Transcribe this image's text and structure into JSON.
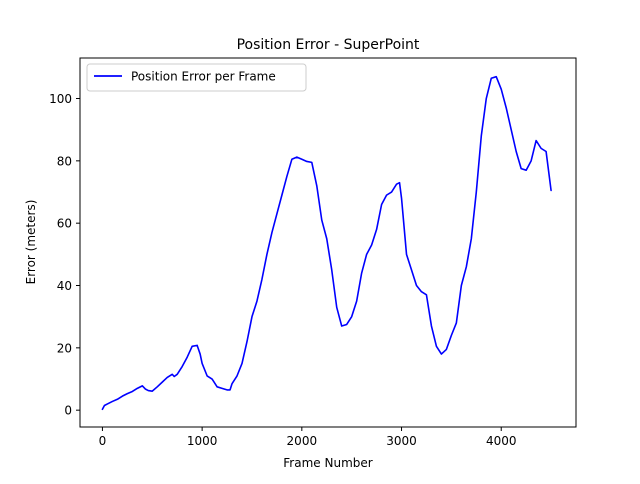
{
  "chart_data": {
    "type": "line",
    "title": "Position Error - SuperPoint",
    "xlabel": "Frame Number",
    "ylabel": "Error (meters)",
    "xlim": [
      -225,
      4750
    ],
    "ylim": [
      -5.4,
      113
    ],
    "xticks": [
      0,
      1000,
      2000,
      3000,
      4000
    ],
    "yticks": [
      0,
      20,
      40,
      60,
      80,
      100
    ],
    "grid": false,
    "legend_position": "upper-left",
    "series": [
      {
        "name": "Position Error per Frame",
        "color": "#0000ff",
        "x": [
          0,
          20,
          50,
          100,
          150,
          200,
          250,
          300,
          350,
          400,
          430,
          460,
          500,
          550,
          600,
          650,
          700,
          720,
          750,
          800,
          850,
          900,
          950,
          980,
          1000,
          1050,
          1100,
          1150,
          1200,
          1250,
          1280,
          1300,
          1350,
          1400,
          1450,
          1500,
          1550,
          1600,
          1650,
          1700,
          1750,
          1800,
          1850,
          1900,
          1950,
          2000,
          2050,
          2100,
          2150,
          2200,
          2250,
          2300,
          2350,
          2400,
          2450,
          2500,
          2550,
          2600,
          2650,
          2700,
          2750,
          2800,
          2850,
          2900,
          2950,
          2980,
          3000,
          3050,
          3100,
          3150,
          3200,
          3250,
          3300,
          3350,
          3400,
          3450,
          3500,
          3550,
          3600,
          3650,
          3700,
          3750,
          3800,
          3850,
          3900,
          3950,
          4000,
          4050,
          4100,
          4150,
          4200,
          4250,
          4300,
          4350,
          4400,
          4450,
          4500
        ],
        "values": [
          0.3,
          1.5,
          2.0,
          2.8,
          3.5,
          4.5,
          5.3,
          6.0,
          7.0,
          7.8,
          6.8,
          6.3,
          6.1,
          7.5,
          9.0,
          10.5,
          11.5,
          10.8,
          11.5,
          14.0,
          17.0,
          20.5,
          20.8,
          18.0,
          15.0,
          11.0,
          10.0,
          7.5,
          7.0,
          6.5,
          6.5,
          8.5,
          11.0,
          15.0,
          22.0,
          30.0,
          35.0,
          42.0,
          50.0,
          57.0,
          63.0,
          69.0,
          75.0,
          80.5,
          81.2,
          80.5,
          79.8,
          79.5,
          72.0,
          61.0,
          55.0,
          45.0,
          33.0,
          27.0,
          27.5,
          30.0,
          35.0,
          44.0,
          50.0,
          53.0,
          58.0,
          66.0,
          69.0,
          70.0,
          72.5,
          73.0,
          68.0,
          50.0,
          45.0,
          40.0,
          38.0,
          37.0,
          27.0,
          20.5,
          18.0,
          19.5,
          24.0,
          28.0,
          40.0,
          46.0,
          55.0,
          70.0,
          88.0,
          100.0,
          106.5,
          107.0,
          103.0,
          97.0,
          90.0,
          83.0,
          77.5,
          77.0,
          80.0,
          86.5,
          84.0,
          83.0,
          70.5
        ]
      }
    ]
  }
}
